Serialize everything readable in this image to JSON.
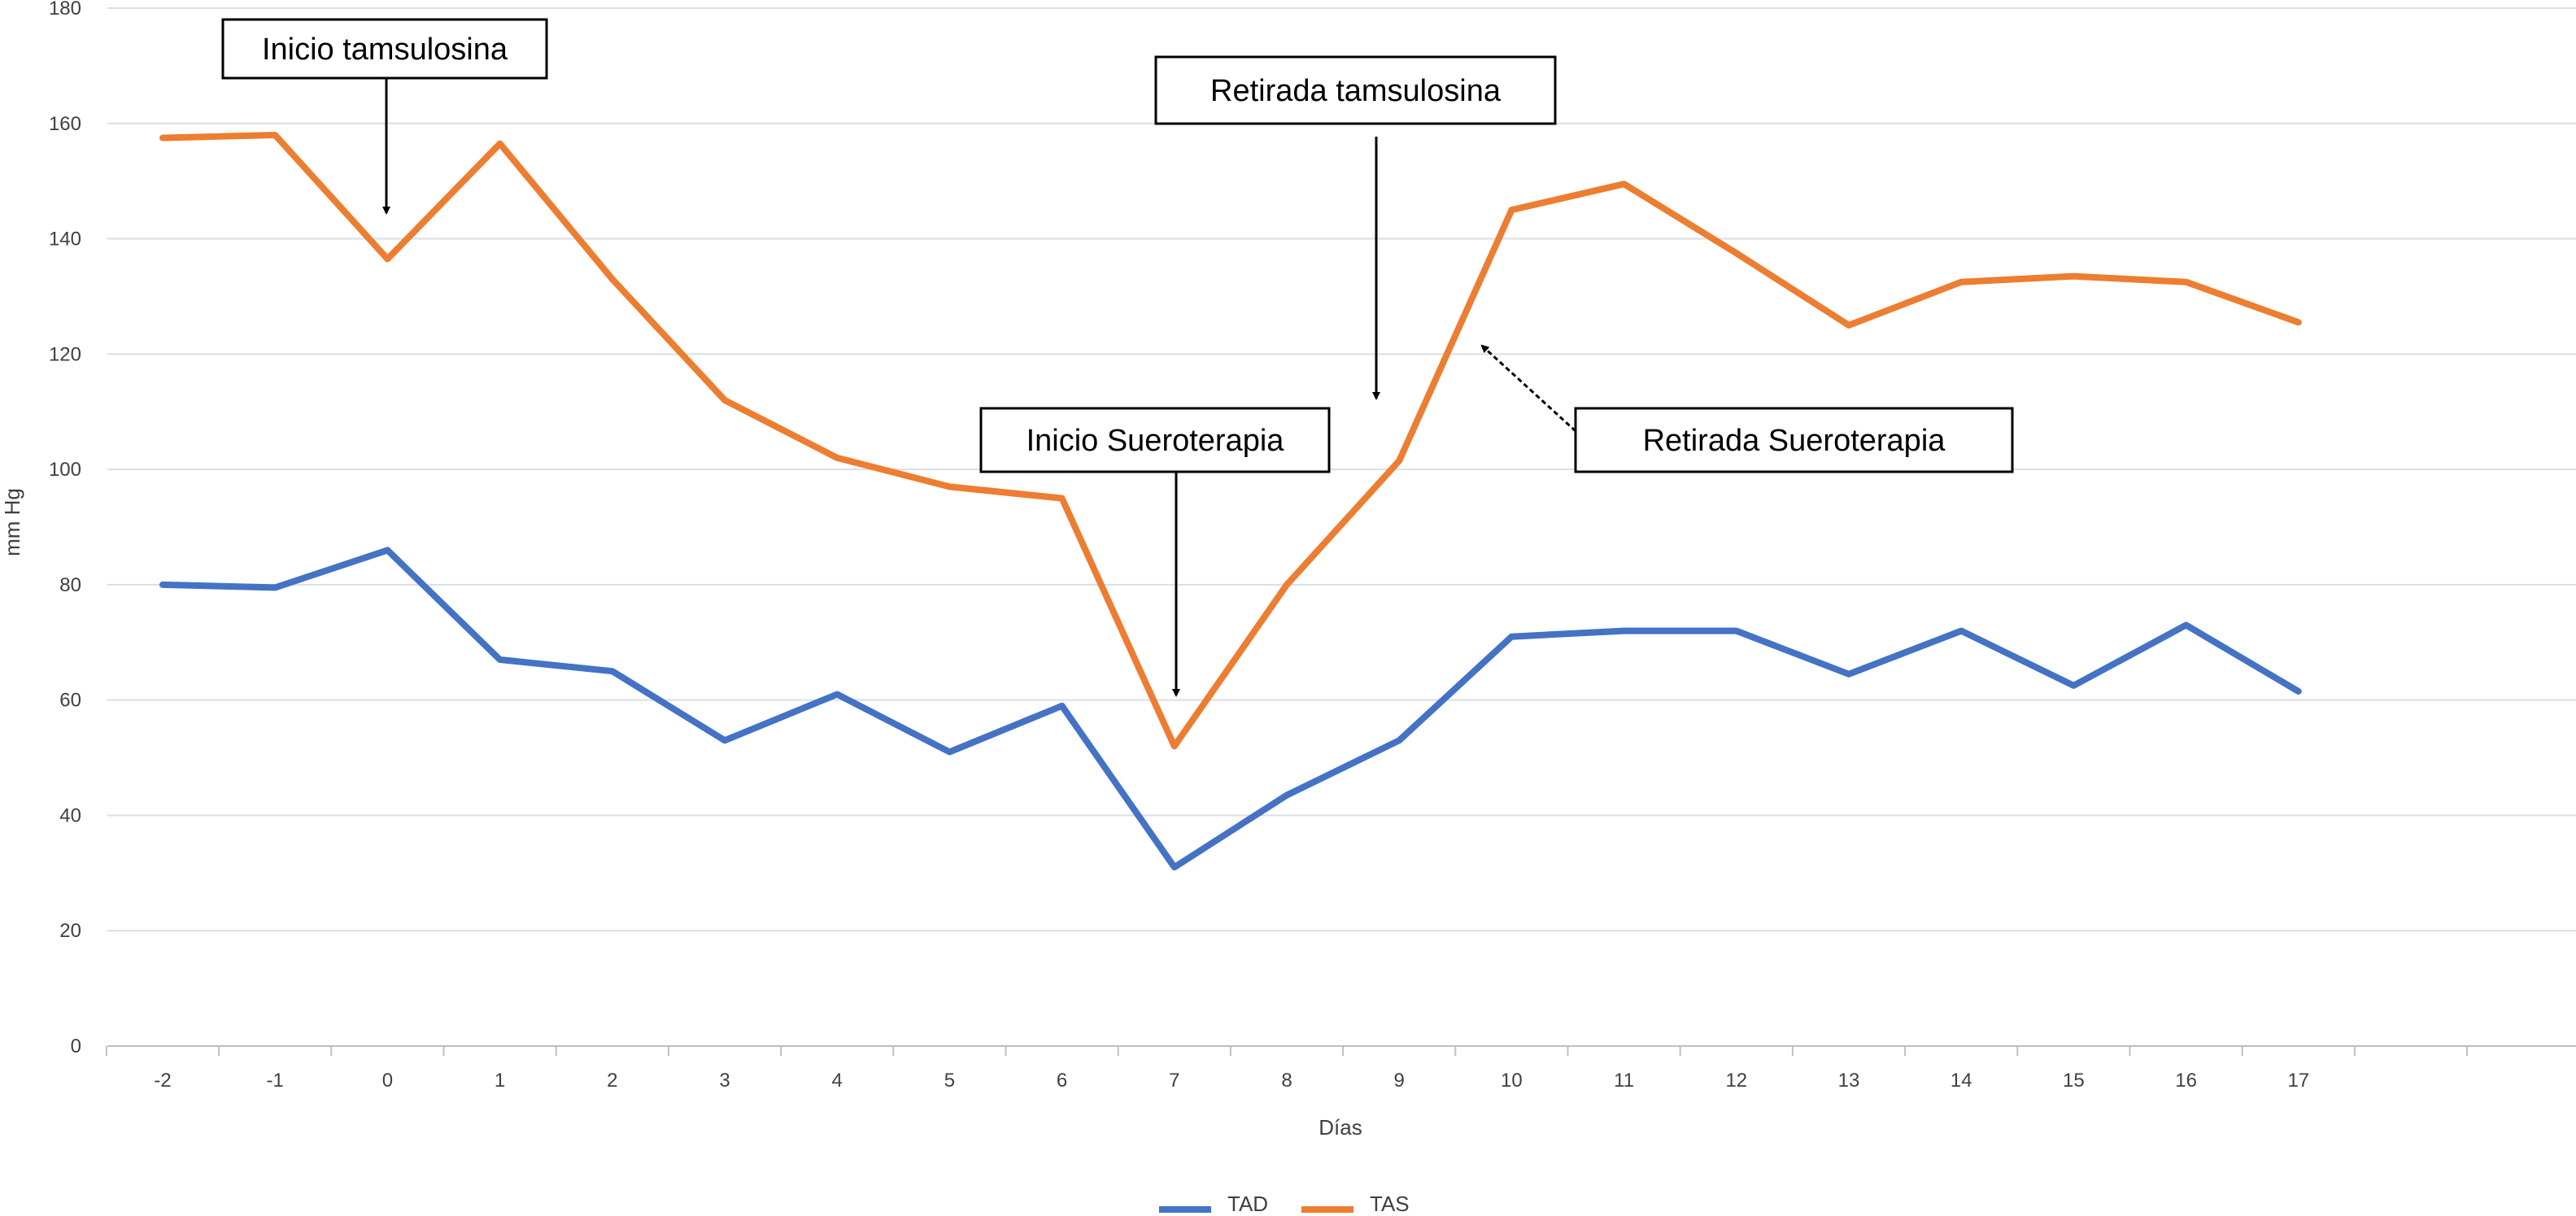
{
  "colors": {
    "TAD": "#4472C4",
    "TAS": "#ED7D31",
    "grid": "#D9DEE8",
    "axis": "#BFBFBF"
  },
  "chart_data": {
    "type": "line",
    "title": "",
    "xlabel": "Días",
    "ylabel": "mm Hg",
    "categories": [
      "-2",
      "-1",
      "0",
      "1",
      "2",
      "3",
      "4",
      "5",
      "6",
      "7",
      "8",
      "9",
      "10",
      "11",
      "12",
      "13",
      "14",
      "15",
      "16",
      "17"
    ],
    "ylim": [
      0,
      180
    ],
    "yticks": [
      0,
      20,
      40,
      60,
      80,
      100,
      120,
      140,
      160,
      180
    ],
    "grid": true,
    "legend_position": "bottom",
    "series": [
      {
        "name": "TAD",
        "color": "#4472C4",
        "values": [
          80,
          79.5,
          86,
          67,
          65,
          53,
          61,
          51,
          59,
          31,
          43.5,
          53,
          71,
          72,
          72,
          64.5,
          72,
          62.5,
          73,
          61.5
        ]
      },
      {
        "name": "TAS",
        "color": "#ED7D31",
        "values": [
          157.5,
          158,
          136.5,
          156.5,
          133,
          112,
          102,
          97,
          95,
          52,
          80,
          101.5,
          145,
          149.5,
          137.5,
          125,
          132.5,
          133.5,
          132.5,
          125.5
        ]
      }
    ],
    "annotations": [
      {
        "text": "Inicio tamsulosina",
        "x_index": 2,
        "y": 143
      },
      {
        "text": "Retirada tamsulosina",
        "x_index": 11,
        "y": 112
      },
      {
        "text": "Inicio Sueroterapia",
        "x_index": 9,
        "y": 60
      },
      {
        "text": "Retirada Sueroterapia",
        "x_index": 12.3,
        "y": 121
      }
    ]
  }
}
